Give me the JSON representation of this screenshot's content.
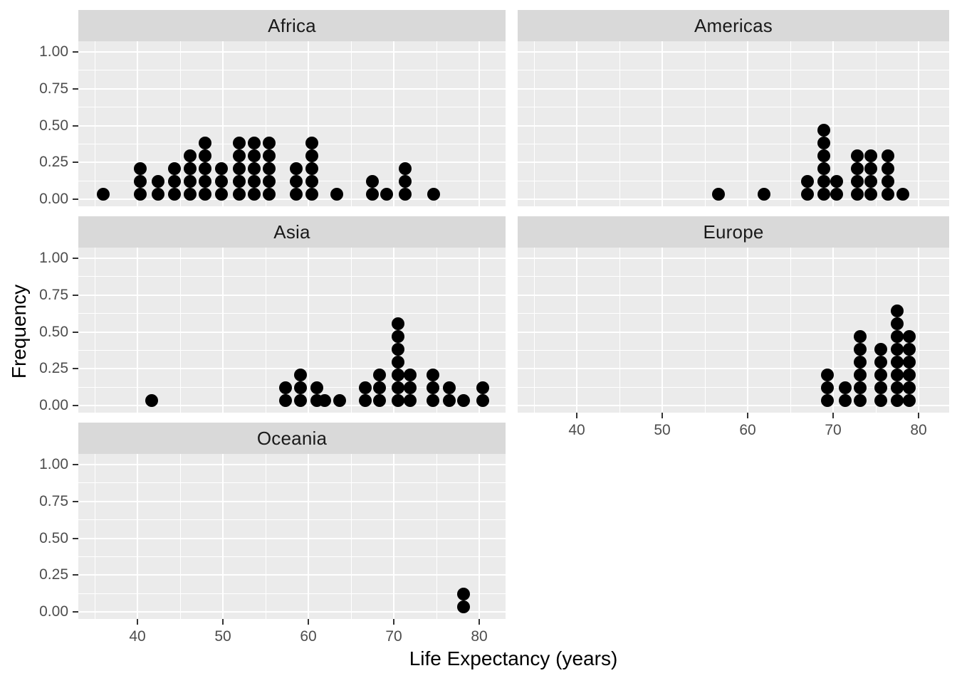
{
  "figure": {
    "x_axis_title": "Life Expectancy (years)",
    "y_axis_title": "Frequency"
  },
  "colors": {
    "background": "#FFFFFF",
    "panel_background": "#EBEBEB",
    "strip_background": "#D9D9D9",
    "gridline": "#FFFFFF",
    "dot": "#000000",
    "tick_label": "#4D4D4D",
    "strip_text": "#1A1A1A",
    "axis_title": "#000000",
    "tick_mark": "#333333"
  },
  "chart_data": {
    "type": "dotplot",
    "title": "",
    "xlabel": "Life Expectancy (years)",
    "ylabel": "Frequency",
    "facet_layout": "2 columns x 3 rows, facets by continent, bottom-right cell empty",
    "xlim": [
      33.1,
      83.2
    ],
    "ylim": [
      0,
      1.05
    ],
    "x_tick_labels": [
      "40",
      "50",
      "60",
      "70",
      "80"
    ],
    "x_tick_values": [
      40,
      50,
      60,
      70,
      80
    ],
    "x_minor_gridlines": [
      35,
      45,
      55,
      65,
      75
    ],
    "y_tick_labels": [
      "1.00",
      "0.75",
      "0.50",
      "0.25",
      "0.00"
    ],
    "y_tick_values": [
      1.0,
      0.75,
      0.5,
      0.25,
      0.0
    ],
    "y_minor_gridlines": [
      0.125,
      0.375,
      0.625,
      0.875
    ],
    "grid": "white major and minor gridlines on gray panel",
    "legend_position": "none",
    "binwidth_years": 1.49,
    "dot_stack_unit_frequency": 0.087,
    "facets": [
      {
        "label": "Africa",
        "row": 0,
        "col": 0,
        "total_dots": 52,
        "stacks": [
          {
            "x": 36.0,
            "n": 1
          },
          {
            "x": 40.3,
            "n": 3
          },
          {
            "x": 42.4,
            "n": 2
          },
          {
            "x": 44.3,
            "n": 3
          },
          {
            "x": 46.2,
            "n": 4
          },
          {
            "x": 47.9,
            "n": 5
          },
          {
            "x": 49.8,
            "n": 3
          },
          {
            "x": 51.9,
            "n": 5
          },
          {
            "x": 53.7,
            "n": 5
          },
          {
            "x": 55.4,
            "n": 5
          },
          {
            "x": 58.6,
            "n": 3
          },
          {
            "x": 60.4,
            "n": 5
          },
          {
            "x": 63.3,
            "n": 1
          },
          {
            "x": 67.5,
            "n": 2
          },
          {
            "x": 69.2,
            "n": 1
          },
          {
            "x": 71.3,
            "n": 3
          },
          {
            "x": 74.7,
            "n": 1
          }
        ]
      },
      {
        "label": "Americas",
        "row": 0,
        "col": 1,
        "total_dots": 25,
        "stacks": [
          {
            "x": 56.6,
            "n": 1
          },
          {
            "x": 61.9,
            "n": 1
          },
          {
            "x": 67.0,
            "n": 2
          },
          {
            "x": 68.9,
            "n": 6
          },
          {
            "x": 70.4,
            "n": 2
          },
          {
            "x": 72.8,
            "n": 4
          },
          {
            "x": 74.4,
            "n": 4
          },
          {
            "x": 76.4,
            "n": 4
          },
          {
            "x": 78.2,
            "n": 1
          }
        ]
      },
      {
        "label": "Asia",
        "row": 1,
        "col": 0,
        "total_dots": 33,
        "stacks": [
          {
            "x": 41.7,
            "n": 1
          },
          {
            "x": 57.3,
            "n": 2
          },
          {
            "x": 59.1,
            "n": 3
          },
          {
            "x": 61.0,
            "n": 2
          },
          {
            "x": 61.9,
            "n": 1
          },
          {
            "x": 63.7,
            "n": 1
          },
          {
            "x": 66.7,
            "n": 2
          },
          {
            "x": 68.3,
            "n": 3
          },
          {
            "x": 70.5,
            "n": 7
          },
          {
            "x": 71.9,
            "n": 3
          },
          {
            "x": 74.6,
            "n": 3
          },
          {
            "x": 76.5,
            "n": 2
          },
          {
            "x": 78.2,
            "n": 1
          },
          {
            "x": 80.4,
            "n": 2
          }
        ]
      },
      {
        "label": "Europe",
        "row": 1,
        "col": 1,
        "total_dots": 30,
        "stacks": [
          {
            "x": 69.3,
            "n": 3
          },
          {
            "x": 71.4,
            "n": 2
          },
          {
            "x": 73.2,
            "n": 6
          },
          {
            "x": 75.6,
            "n": 5
          },
          {
            "x": 77.5,
            "n": 8
          },
          {
            "x": 78.9,
            "n": 6
          }
        ]
      },
      {
        "label": "Oceania",
        "row": 2,
        "col": 0,
        "total_dots": 2,
        "stacks": [
          {
            "x": 78.2,
            "n": 2
          }
        ]
      }
    ],
    "x_axis_shown_under": [
      "Oceania",
      "Europe"
    ],
    "y_axis_shown_rows": [
      0,
      1,
      2
    ]
  }
}
